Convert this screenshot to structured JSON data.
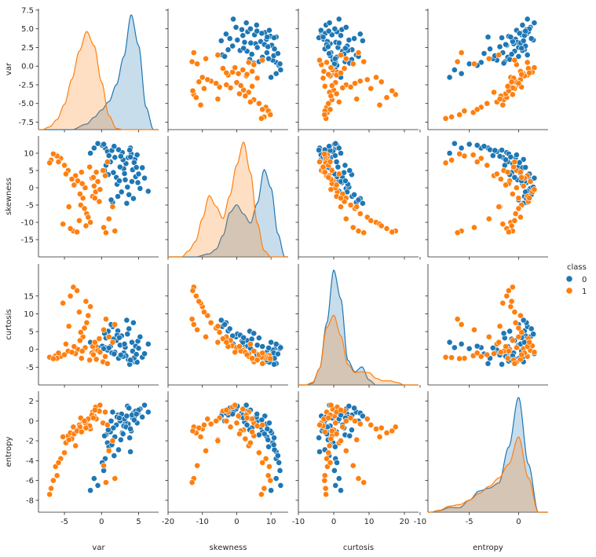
{
  "chart_data": {
    "type": "scatter",
    "subtype": "pairplot",
    "variables": [
      "var",
      "skewness",
      "curtosis",
      "entropy"
    ],
    "hue": "class",
    "diagonal": "kde",
    "legend": {
      "title": "class",
      "placement": "right",
      "entries": [
        {
          "label": "0",
          "color": "#1f77b4"
        },
        {
          "label": "1",
          "color": "#ff7f0e"
        }
      ]
    },
    "ranges": {
      "var": [
        -8.5,
        7.7
      ],
      "skewness": [
        -20,
        15
      ],
      "curtosis": [
        -10,
        24
      ],
      "entropy": [
        -9.2,
        3.0
      ]
    },
    "ticks": {
      "var_y": [
        -7.5,
        -5.0,
        -2.5,
        0.0,
        2.5,
        5.0,
        7.5
      ],
      "skewness_y": [
        -15,
        -10,
        -5,
        0,
        5,
        10
      ],
      "curtosis_y": [
        -5,
        0,
        5,
        10,
        15
      ],
      "entropy_y": [
        -8,
        -6,
        -4,
        -2,
        0,
        2
      ],
      "var_x": [
        -5,
        0,
        5
      ],
      "skewness_x": [
        -20,
        -10,
        0,
        10
      ],
      "curtosis_x": [
        -10,
        0,
        10,
        20
      ],
      "entropy_x": [
        -10,
        -5,
        0
      ]
    },
    "tick_labels": {
      "var_y": [
        "-7.5",
        "-5.0",
        "-2.5",
        "0.0",
        "2.5",
        "5.0",
        "7.5"
      ],
      "skewness_y": [
        "-15",
        "-10",
        "-5",
        "0",
        "5",
        "10"
      ],
      "curtosis_y": [
        "-5",
        "0",
        "5",
        "10",
        "15"
      ],
      "entropy_y": [
        "-8",
        "-6",
        "-4",
        "-2",
        "0",
        "2"
      ],
      "var_x": [
        "-5",
        "0",
        "5"
      ],
      "skewness_x": [
        "-20",
        "-10",
        "0",
        "10"
      ],
      "curtosis_x": [
        "-10",
        "0",
        "10",
        "20"
      ],
      "entropy_x": [
        "-10",
        "-5",
        "0"
      ]
    },
    "series": [
      {
        "name": "0",
        "color": "#1f77b4",
        "points": [
          [
            3.6,
            8.7,
            -2.8,
            -0.3
          ],
          [
            4.5,
            8.2,
            -3.5,
            0.5
          ],
          [
            2.8,
            10.2,
            -1.5,
            -1.2
          ],
          [
            0.5,
            11.5,
            0.5,
            -3.8
          ],
          [
            0.1,
            12.3,
            0.9,
            -4.2
          ],
          [
            4.9,
            1.5,
            2.3,
            0.8
          ],
          [
            5.2,
            -0.2,
            3.5,
            1.2
          ],
          [
            3.2,
            2.3,
            0.6,
            -0.1
          ],
          [
            2.2,
            -2.5,
            5.2,
            0.6
          ],
          [
            1.5,
            -4.2,
            6.4,
            0.9
          ],
          [
            3.9,
            11.5,
            -4.0,
            -3.1
          ],
          [
            4.3,
            -3.1,
            7.5,
            0.8
          ],
          [
            3.0,
            5.5,
            -1.0,
            -0.5
          ],
          [
            1.8,
            8.8,
            -0.8,
            -1.6
          ],
          [
            4.2,
            5.2,
            -0.5,
            0.3
          ],
          [
            2.5,
            6.0,
            1.2,
            0.0
          ],
          [
            0.8,
            10.5,
            -0.2,
            -2.2
          ],
          [
            6.3,
            -1.0,
            1.5,
            0.9
          ],
          [
            2.0,
            3.0,
            2.5,
            -0.4
          ],
          [
            3.5,
            0.2,
            4.3,
            1.5
          ],
          [
            1.2,
            7.5,
            0.8,
            -1.1
          ],
          [
            5.5,
            5.8,
            -2.2,
            0.4
          ],
          [
            4.0,
            9.8,
            -3.3,
            -1.0
          ],
          [
            2.7,
            -1.2,
            3.8,
            0.7
          ],
          [
            0.3,
            12.6,
            0.2,
            -5.0
          ],
          [
            1.0,
            9.3,
            0.4,
            -2.6
          ],
          [
            3.3,
            7.0,
            -1.8,
            -0.6
          ],
          [
            4.6,
            3.2,
            0.9,
            1.0
          ],
          [
            1.6,
            4.4,
            2.9,
            -0.7
          ],
          [
            5.8,
            2.8,
            -1.2,
            1.6
          ],
          [
            2.3,
            11.0,
            -2.5,
            -2.9
          ],
          [
            3.7,
            -2.0,
            5.8,
            1.3
          ],
          [
            0.6,
            6.5,
            3.2,
            -1.4
          ],
          [
            4.8,
            9.5,
            -3.6,
            -0.2
          ],
          [
            2.9,
            8.1,
            -2.0,
            -1.3
          ],
          [
            1.4,
            10.8,
            -1.0,
            -2.4
          ],
          [
            3.1,
            4.1,
            1.5,
            0.2
          ],
          [
            4.4,
            7.3,
            -2.4,
            0.1
          ],
          [
            5.0,
            4.0,
            0.3,
            1.1
          ],
          [
            2.1,
            1.0,
            4.0,
            0.4
          ],
          [
            0.9,
            3.8,
            5.1,
            -0.9
          ],
          [
            3.8,
            10.9,
            -4.2,
            -1.7
          ],
          [
            1.7,
            12.0,
            -1.3,
            -3.5
          ],
          [
            4.1,
            1.8,
            2.0,
            0.6
          ],
          [
            2.6,
            9.1,
            -1.6,
            -1.9
          ],
          [
            -1.0,
            11.5,
            1.5,
            -5.8
          ],
          [
            -0.5,
            12.8,
            0.5,
            -6.5
          ],
          [
            -1.5,
            10.0,
            2.0,
            -7.0
          ],
          [
            1.3,
            -3.5,
            7.0,
            0.0
          ],
          [
            3.4,
            -4.5,
            8.2,
            0.5
          ],
          [
            0.4,
            5.0,
            4.5,
            -1.5
          ],
          [
            2.4,
            2.0,
            3.3,
            0.3
          ],
          [
            4.7,
            5.9,
            -1.4,
            0.7
          ],
          [
            3.9,
            8.9,
            -3.0,
            -0.8
          ]
        ],
        "kde": {
          "var": {
            "x": [
              -8,
              -6,
              -4,
              -2,
              -1,
              0,
              1,
              2,
              3,
              4,
              5,
              6,
              7
            ],
            "density": [
              0.0,
              0.0,
              0.0,
              0.01,
              0.022,
              0.035,
              0.05,
              0.08,
              0.13,
              0.205,
              0.15,
              0.04,
              0.0
            ]
          },
          "skewness": {
            "x": [
              -16,
              -12,
              -8,
              -6,
              -4,
              -2,
              0,
              2,
              4,
              6,
              8,
              10,
              12,
              14
            ],
            "density": [
              0.0,
              0.0,
              0.002,
              0.005,
              0.014,
              0.029,
              0.034,
              0.028,
              0.022,
              0.035,
              0.057,
              0.045,
              0.015,
              0.0
            ]
          },
          "curtosis": {
            "x": [
              -8,
              -6,
              -4,
              -2,
              0,
              2,
              4,
              6,
              8,
              10,
              12,
              16
            ],
            "density": [
              0.0,
              0.002,
              0.02,
              0.075,
              0.14,
              0.105,
              0.03,
              0.016,
              0.022,
              0.006,
              0.0,
              0.0
            ]
          },
          "entropy": {
            "x": [
              -9,
              -8,
              -7,
              -6,
              -5,
              -4,
              -3,
              -2,
              -1,
              0,
              1,
              2
            ],
            "density": [
              0.0,
              0.005,
              0.014,
              0.013,
              0.035,
              0.062,
              0.07,
              0.085,
              0.19,
              0.335,
              0.14,
              0.0
            ]
          }
        }
      },
      {
        "name": "1",
        "color": "#ff7f0e",
        "points": [
          [
            -2.5,
            -3.0,
            3.5,
            0.0
          ],
          [
            -1.0,
            0.5,
            0.2,
            0.5
          ],
          [
            -3.2,
            2.0,
            0.0,
            -0.9
          ],
          [
            -4.5,
            5.0,
            -0.5,
            -1.5
          ],
          [
            -6.2,
            9.5,
            -1.8,
            -4.6
          ],
          [
            -5.5,
            8.5,
            -2.0,
            -3.8
          ],
          [
            -0.5,
            1.8,
            -0.3,
            1.2
          ],
          [
            -2.0,
            -7.5,
            7.5,
            -0.3
          ],
          [
            -1.5,
            -10.0,
            12.0,
            -0.8
          ],
          [
            -3.8,
            -12.5,
            17.5,
            -0.6
          ],
          [
            -4.2,
            -11.8,
            15.0,
            -1.2
          ],
          [
            0.5,
            3.5,
            -2.0,
            0.9
          ],
          [
            -0.8,
            -1.2,
            1.0,
            1.4
          ],
          [
            -2.8,
            -5.0,
            4.8,
            0.3
          ],
          [
            -6.8,
            8.0,
            -2.3,
            -6.8
          ],
          [
            -7.0,
            7.2,
            -2.2,
            -7.4
          ],
          [
            -1.2,
            -2.5,
            0.8,
            0.9
          ],
          [
            0.2,
            5.0,
            -3.5,
            -0.2
          ],
          [
            -3.5,
            3.5,
            -1.2,
            -2.5
          ],
          [
            -5.0,
            6.5,
            -1.5,
            -3.2
          ],
          [
            -2.2,
            0.0,
            0.5,
            -0.2
          ],
          [
            -0.3,
            -4.0,
            3.0,
            1.0
          ],
          [
            -1.8,
            -8.5,
            9.5,
            0.2
          ],
          [
            -4.8,
            4.0,
            1.5,
            -2.2
          ],
          [
            -6.0,
            9.2,
            -2.5,
            -5.5
          ],
          [
            -2.6,
            1.2,
            -0.5,
            -1.0
          ],
          [
            -0.7,
            4.5,
            -2.8,
            0.2
          ],
          [
            -3.0,
            -9.5,
            10.5,
            -0.4
          ],
          [
            -5.2,
            -10.5,
            13.0,
            -1.6
          ],
          [
            -1.3,
            2.8,
            -1.0,
            0.6
          ],
          [
            -2.3,
            -6.0,
            6.0,
            0.0
          ],
          [
            -3.7,
            0.8,
            0.8,
            -1.3
          ],
          [
            -4.0,
            2.5,
            -0.8,
            -1.8
          ],
          [
            -0.2,
            -0.5,
            -0.8,
            1.6
          ],
          [
            -1.6,
            6.0,
            -3.0,
            -0.5
          ],
          [
            -2.9,
            -1.8,
            2.5,
            -0.6
          ],
          [
            -5.8,
            7.5,
            -1.0,
            -4.2
          ],
          [
            -6.5,
            9.8,
            -2.6,
            -6.0
          ],
          [
            -0.9,
            -3.0,
            2.0,
            1.1
          ],
          [
            -2.1,
            -11.0,
            13.5,
            -0.7
          ],
          [
            -3.3,
            -12.8,
            16.5,
            -1.0
          ],
          [
            -4.4,
            -5.5,
            6.5,
            -1.9
          ],
          [
            -1.1,
            3.0,
            -1.5,
            0.3
          ],
          [
            -2.7,
            4.5,
            -2.5,
            -1.1
          ],
          [
            0.8,
            7.5,
            -4.0,
            -0.4
          ],
          [
            1.5,
            -5.5,
            2.0,
            -2.0
          ],
          [
            1.0,
            -9.0,
            3.5,
            -3.0
          ],
          [
            0.3,
            -11.5,
            5.5,
            -4.5
          ],
          [
            1.8,
            -12.5,
            7.0,
            -5.8
          ],
          [
            0.6,
            -13.0,
            8.5,
            -6.2
          ]
        ],
        "kde": {
          "var": {
            "x": [
              -8,
              -7,
              -6,
              -5,
              -4,
              -3,
              -2,
              -1,
              0,
              1,
              2,
              3
            ],
            "density": [
              0.0,
              0.005,
              0.018,
              0.045,
              0.09,
              0.14,
              0.175,
              0.15,
              0.085,
              0.025,
              0.002,
              0.0
            ]
          },
          "skewness": {
            "x": [
              -16,
              -14,
              -12,
              -10,
              -8,
              -6,
              -4,
              -2,
              0,
              2,
              4,
              6,
              8,
              10
            ],
            "density": [
              0.0,
              0.004,
              0.01,
              0.025,
              0.04,
              0.033,
              0.025,
              0.04,
              0.06,
              0.075,
              0.055,
              0.022,
              0.004,
              0.0
            ]
          },
          "curtosis": {
            "x": [
              -8,
              -6,
              -4,
              -2,
              0,
              2,
              4,
              6,
              8,
              10,
              12,
              14,
              16,
              18,
              20
            ],
            "density": [
              0.0,
              0.003,
              0.02,
              0.07,
              0.085,
              0.06,
              0.025,
              0.015,
              0.016,
              0.015,
              0.008,
              0.005,
              0.005,
              0.003,
              0.0
            ]
          },
          "entropy": {
            "x": [
              -9,
              -8,
              -7,
              -6,
              -5,
              -4,
              -3,
              -2,
              -1,
              0,
              1,
              2
            ],
            "density": [
              0.0,
              0.006,
              0.018,
              0.022,
              0.035,
              0.055,
              0.075,
              0.1,
              0.14,
              0.22,
              0.1,
              0.0
            ]
          }
        }
      }
    ]
  }
}
